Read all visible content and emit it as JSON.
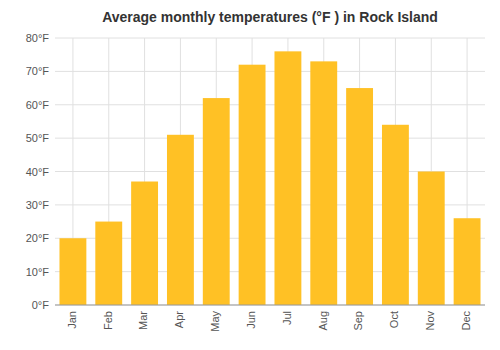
{
  "chart_data": {
    "type": "bar",
    "title": "Average monthly temperatures (°F ) in Rock Island",
    "categories": [
      "Jan",
      "Feb",
      "Mar",
      "Apr",
      "May",
      "Jun",
      "Jul",
      "Aug",
      "Sep",
      "Oct",
      "Nov",
      "Dec"
    ],
    "values": [
      20,
      25,
      37,
      51,
      62,
      72,
      76,
      73,
      65,
      54,
      40,
      26
    ],
    "color": "#FFC125",
    "ylim": [
      0,
      80
    ],
    "yticks": [
      {
        "value": 0,
        "label": "0°F"
      },
      {
        "value": 10,
        "label": "10°F"
      },
      {
        "value": 20,
        "label": "20°F"
      },
      {
        "value": 30,
        "label": "30°F"
      },
      {
        "value": 40,
        "label": "40°F"
      },
      {
        "value": 50,
        "label": "50°F"
      },
      {
        "value": 60,
        "label": "60°F"
      },
      {
        "value": 70,
        "label": "70°F"
      },
      {
        "value": 80,
        "label": "80°F"
      }
    ],
    "grid": true
  }
}
